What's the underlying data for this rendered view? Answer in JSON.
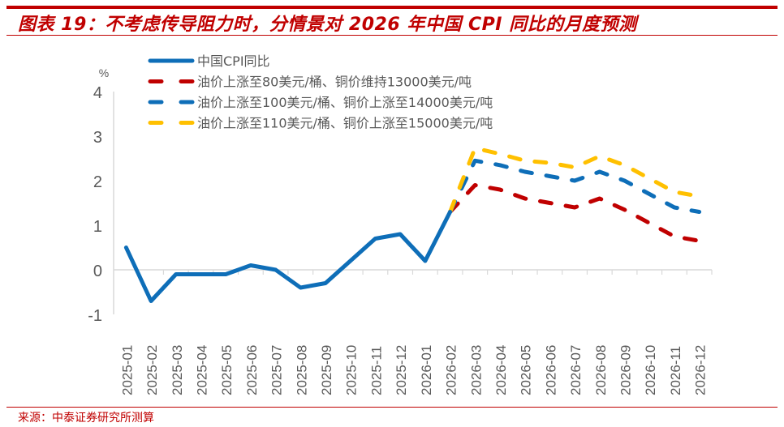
{
  "header": {
    "title": "图表 19：不考虑传导阻力时，分情景对 2026 年中国 CPI 同比的月度预测"
  },
  "footer": {
    "source": "来源：中泰证券研究所测算"
  },
  "chart_data": {
    "type": "line",
    "title": "图表 19：不考虑传导阻力时，分情景对 2026 年中国 CPI 同比的月度预测",
    "xlabel": "",
    "ylabel": "%",
    "ylim": [
      -1,
      4
    ],
    "yticks": [
      "-1",
      "0",
      "1",
      "2",
      "3",
      "4"
    ],
    "grid": false,
    "legend_position": "top-left",
    "categories": [
      "2025-01",
      "2025-02",
      "2025-03",
      "2025-04",
      "2025-05",
      "2025-06",
      "2025-07",
      "2025-08",
      "2025-09",
      "2025-10",
      "2025-11",
      "2025-12",
      "2026-01",
      "2026-02",
      "2026-03",
      "2026-04",
      "2026-05",
      "2026-06",
      "2026-07",
      "2026-08",
      "2026-09",
      "2026-10",
      "2026-11",
      "2026-12"
    ],
    "series": [
      {
        "name": "中国CPI同比",
        "style": "solid",
        "color": "#0E6EB8",
        "values": [
          0.5,
          -0.7,
          -0.1,
          -0.1,
          -0.1,
          0.1,
          0.0,
          -0.4,
          -0.3,
          0.2,
          0.7,
          0.8,
          0.2,
          1.3,
          null,
          null,
          null,
          null,
          null,
          null,
          null,
          null,
          null,
          null
        ]
      },
      {
        "name": "油价上涨至80美元/桶、铜价维持13000美元/吨",
        "style": "dashed",
        "color": "#C00000",
        "values": [
          null,
          null,
          null,
          null,
          null,
          null,
          null,
          null,
          null,
          null,
          null,
          null,
          null,
          1.3,
          1.9,
          1.8,
          1.6,
          1.5,
          1.4,
          1.6,
          1.35,
          1.05,
          0.75,
          0.65
        ]
      },
      {
        "name": "油价上涨至100美元/桶、铜价上涨至14000美元/吨",
        "style": "dashed",
        "color": "#0E6EB8",
        "values": [
          null,
          null,
          null,
          null,
          null,
          null,
          null,
          null,
          null,
          null,
          null,
          null,
          null,
          1.3,
          2.45,
          2.35,
          2.2,
          2.1,
          2.0,
          2.2,
          2.0,
          1.7,
          1.4,
          1.3
        ]
      },
      {
        "name": "油价上涨至110美元/桶、铜价上涨至15000美元/吨",
        "style": "dashed",
        "color": "#FFC000",
        "values": [
          null,
          null,
          null,
          null,
          null,
          null,
          null,
          null,
          null,
          null,
          null,
          null,
          null,
          1.3,
          2.73,
          2.6,
          2.45,
          2.4,
          2.3,
          2.55,
          2.35,
          2.05,
          1.75,
          1.65
        ]
      }
    ]
  }
}
